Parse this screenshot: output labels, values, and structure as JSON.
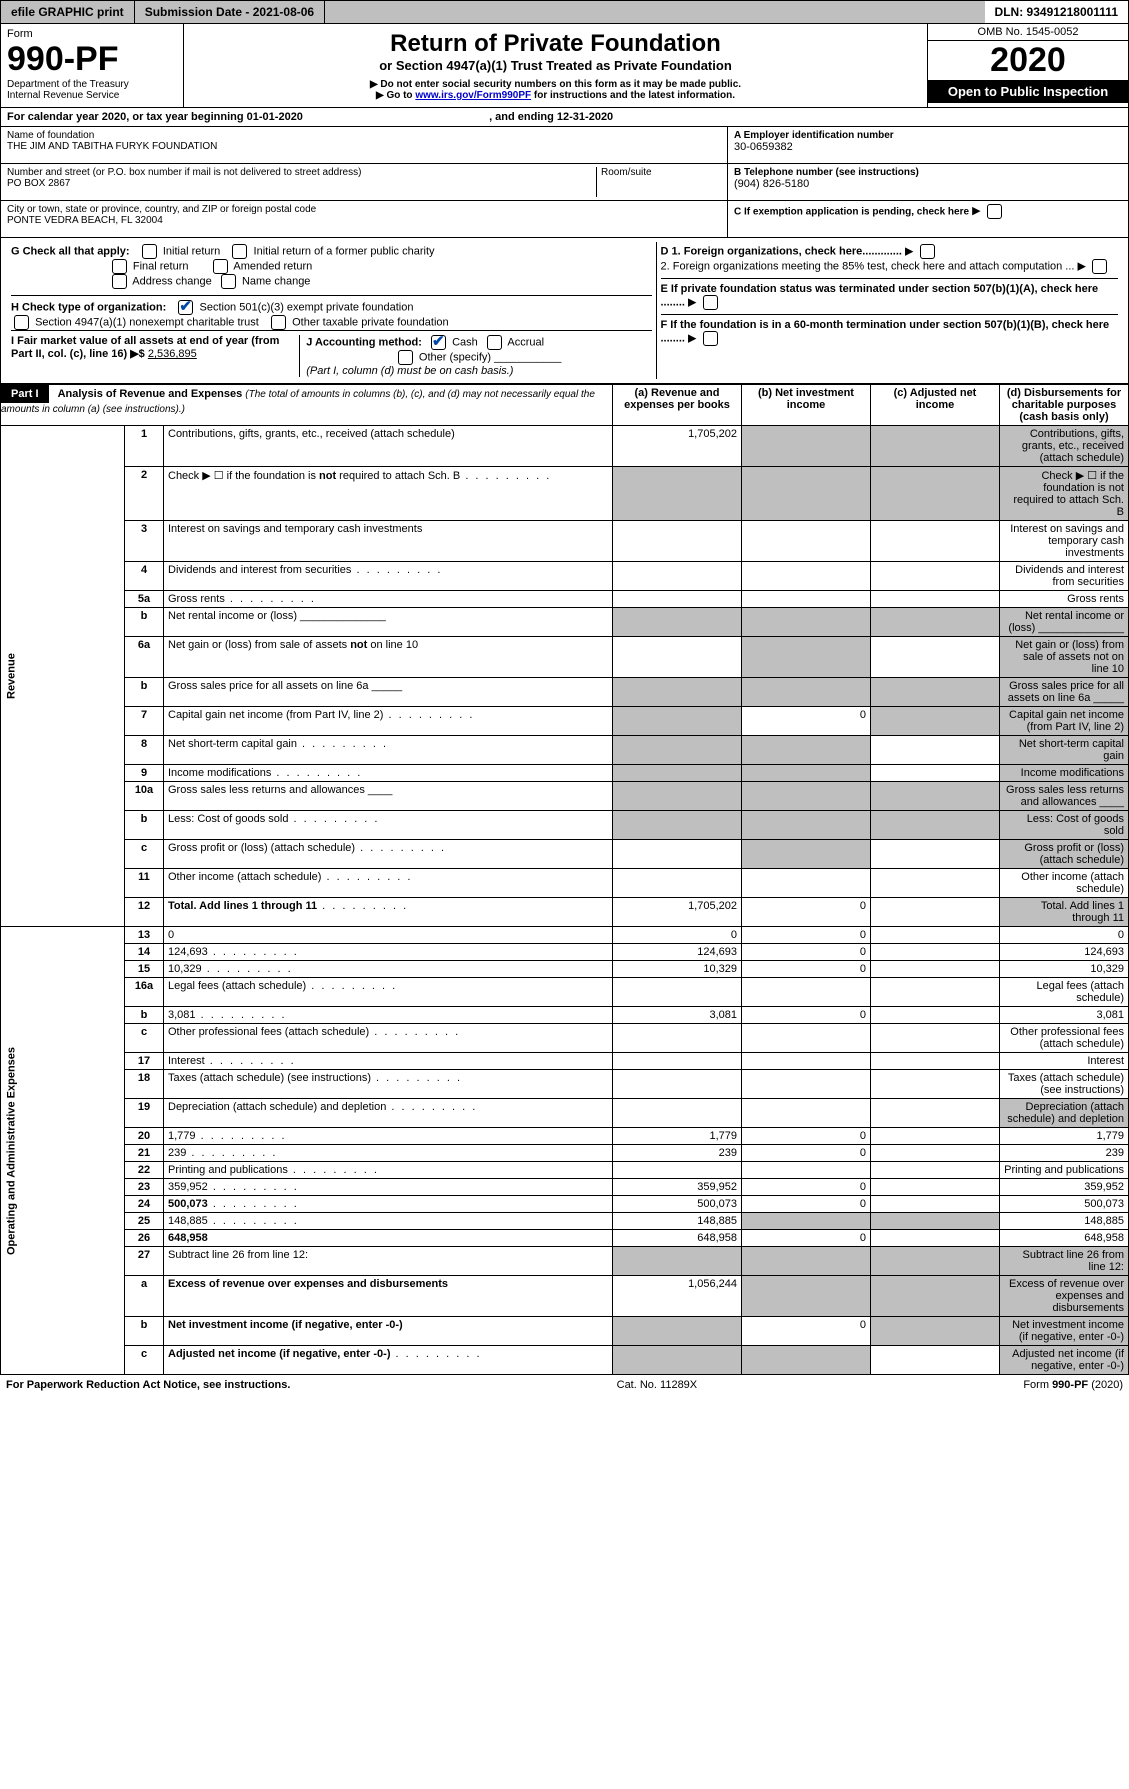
{
  "topbar": {
    "efile": "efile GRAPHIC print",
    "subdate_label": "Submission Date - ",
    "subdate": "2021-08-06",
    "dln_label": "DLN: ",
    "dln": "93491218001111"
  },
  "header": {
    "form_label": "Form",
    "form_no": "990-PF",
    "dept1": "Department of the Treasury",
    "dept2": "Internal Revenue Service",
    "title": "Return of Private Foundation",
    "subtitle": "or Section 4947(a)(1) Trust Treated as Private Foundation",
    "note1": "▶ Do not enter social security numbers on this form as it may be made public.",
    "note2_pre": "▶ Go to ",
    "note2_link": "www.irs.gov/Form990PF",
    "note2_post": " for instructions and the latest information.",
    "omb": "OMB No. 1545-0052",
    "year": "2020",
    "open": "Open to Public Inspection"
  },
  "calendar": {
    "text_pre": "For calendar year 2020, or tax year beginning ",
    "begin": "01-01-2020",
    "mid": " , and ending ",
    "end": "12-31-2020"
  },
  "info": {
    "name_label": "Name of foundation",
    "name": "THE JIM AND TABITHA FURYK FOUNDATION",
    "addr_label": "Number and street (or P.O. box number if mail is not delivered to street address)",
    "addr": "PO BOX 2867",
    "room_label": "Room/suite",
    "city_label": "City or town, state or province, country, and ZIP or foreign postal code",
    "city": "PONTE VEDRA BEACH, FL  32004",
    "a_label": "A Employer identification number",
    "a_val": "30-0659382",
    "b_label": "B Telephone number (see instructions)",
    "b_val": "(904) 826-5180",
    "c_label": "C If exemption application is pending, check here",
    "d1": "D 1. Foreign organizations, check here.............",
    "d2": "2. Foreign organizations meeting the 85% test, check here and attach computation ...",
    "e_label": "E  If private foundation status was terminated under section 507(b)(1)(A), check here ........",
    "f_label": "F  If the foundation is in a 60-month termination under section 507(b)(1)(B), check here ........"
  },
  "checks": {
    "g_label": "G Check all that apply:",
    "g_initial": "Initial return",
    "g_initial_former": "Initial return of a former public charity",
    "g_final": "Final return",
    "g_amended": "Amended return",
    "g_addr": "Address change",
    "g_name": "Name change",
    "h_label": "H Check type of organization:",
    "h_501c3": "Section 501(c)(3) exempt private foundation",
    "h_4947": "Section 4947(a)(1) nonexempt charitable trust",
    "h_other": "Other taxable private foundation",
    "i_label": "I Fair market value of all assets at end of year (from Part II, col. (c), line 16) ▶$ ",
    "i_val": "2,536,895",
    "j_label": "J Accounting method:",
    "j_cash": "Cash",
    "j_accrual": "Accrual",
    "j_other": "Other (specify)",
    "j_note": "(Part I, column (d) must be on cash basis.)"
  },
  "part1": {
    "label": "Part I",
    "title": "Analysis of Revenue and Expenses",
    "title_paren": " (The total of amounts in columns (b), (c), and (d) may not necessarily equal the amounts in column (a) (see instructions).)",
    "col_a": "(a)   Revenue and expenses per books",
    "col_b": "(b)  Net investment income",
    "col_c": "(c)  Adjusted net income",
    "col_d": "(d)  Disbursements for charitable purposes (cash basis only)",
    "side_rev": "Revenue",
    "side_exp": "Operating and Administrative Expenses"
  },
  "lines": [
    {
      "n": "1",
      "d": "Contributions, gifts, grants, etc., received (attach schedule)",
      "a": "1,705,202",
      "grey_b": true,
      "grey_c": true,
      "grey_d": true
    },
    {
      "n": "2",
      "d": "Check ▶ ☐ if the foundation is not required to attach Sch. B",
      "grey_a": true,
      "grey_b": true,
      "grey_c": true,
      "grey_d": true,
      "dots": true
    },
    {
      "n": "3",
      "d": "Interest on savings and temporary cash investments"
    },
    {
      "n": "4",
      "d": "Dividends and interest from securities",
      "dots": true
    },
    {
      "n": "5a",
      "d": "Gross rents",
      "dots": true
    },
    {
      "n": "b",
      "d": "Net rental income or (loss)  ______________",
      "grey_a": true,
      "grey_b": true,
      "grey_c": true,
      "grey_d": true
    },
    {
      "n": "6a",
      "d": "Net gain or (loss) from sale of assets not on line 10",
      "grey_b": true,
      "grey_d": true
    },
    {
      "n": "b",
      "d": "Gross sales price for all assets on line 6a  _____",
      "grey_a": true,
      "grey_b": true,
      "grey_c": true,
      "grey_d": true
    },
    {
      "n": "7",
      "d": "Capital gain net income (from Part IV, line 2)",
      "dots": true,
      "grey_a": true,
      "b": "0",
      "grey_c": true,
      "grey_d": true
    },
    {
      "n": "8",
      "d": "Net short-term capital gain",
      "dots": true,
      "grey_a": true,
      "grey_b": true,
      "grey_d": true
    },
    {
      "n": "9",
      "d": "Income modifications",
      "dots": true,
      "grey_a": true,
      "grey_b": true,
      "grey_d": true
    },
    {
      "n": "10a",
      "d": "Gross sales less returns and allowances   ____",
      "grey_a": true,
      "grey_b": true,
      "grey_c": true,
      "grey_d": true
    },
    {
      "n": "b",
      "d": "Less: Cost of goods sold",
      "dots": true,
      "grey_a": true,
      "grey_b": true,
      "grey_c": true,
      "grey_d": true
    },
    {
      "n": "c",
      "d": "Gross profit or (loss) (attach schedule)",
      "dots": true,
      "grey_b": true,
      "grey_d": true
    },
    {
      "n": "11",
      "d": "Other income (attach schedule)",
      "dots": true
    },
    {
      "n": "12",
      "d": "Total. Add lines 1 through 11",
      "bold": true,
      "dots": true,
      "a": "1,705,202",
      "b": "0",
      "grey_d": true
    },
    {
      "n": "13",
      "d": "0",
      "a": "0",
      "b": "0"
    },
    {
      "n": "14",
      "d": "124,693",
      "dots": true,
      "a": "124,693",
      "b": "0"
    },
    {
      "n": "15",
      "d": "10,329",
      "dots": true,
      "a": "10,329",
      "b": "0"
    },
    {
      "n": "16a",
      "d": "Legal fees (attach schedule)",
      "dots": true
    },
    {
      "n": "b",
      "d": "3,081",
      "dots": true,
      "a": "3,081",
      "b": "0"
    },
    {
      "n": "c",
      "d": "Other professional fees (attach schedule)",
      "dots": true
    },
    {
      "n": "17",
      "d": "Interest",
      "dots": true
    },
    {
      "n": "18",
      "d": "Taxes (attach schedule) (see instructions)",
      "dots": true
    },
    {
      "n": "19",
      "d": "Depreciation (attach schedule) and depletion",
      "dots": true,
      "grey_d": true
    },
    {
      "n": "20",
      "d": "1,779",
      "dots": true,
      "a": "1,779",
      "b": "0"
    },
    {
      "n": "21",
      "d": "239",
      "dots": true,
      "a": "239",
      "b": "0"
    },
    {
      "n": "22",
      "d": "Printing and publications",
      "dots": true
    },
    {
      "n": "23",
      "d": "359,952",
      "dots": true,
      "a": "359,952",
      "b": "0"
    },
    {
      "n": "24",
      "d": "500,073",
      "bold": true,
      "dots": true,
      "a": "500,073",
      "b": "0"
    },
    {
      "n": "25",
      "d": "148,885",
      "dots": true,
      "a": "148,885",
      "grey_b": true,
      "grey_c": true
    },
    {
      "n": "26",
      "d": "648,958",
      "bold": true,
      "a": "648,958",
      "b": "0"
    },
    {
      "n": "27",
      "d": "Subtract line 26 from line 12:",
      "grey_a": true,
      "grey_b": true,
      "grey_c": true,
      "grey_d": true
    },
    {
      "n": "a",
      "d": "Excess of revenue over expenses and disbursements",
      "bold": true,
      "a": "1,056,244",
      "grey_b": true,
      "grey_c": true,
      "grey_d": true
    },
    {
      "n": "b",
      "d": "Net investment income (if negative, enter -0-)",
      "bold": true,
      "grey_a": true,
      "b": "0",
      "grey_c": true,
      "grey_d": true
    },
    {
      "n": "c",
      "d": "Adjusted net income (if negative, enter -0-)",
      "bold": true,
      "dots": true,
      "grey_a": true,
      "grey_b": true,
      "grey_d": true
    }
  ],
  "footer": {
    "left": "For Paperwork Reduction Act Notice, see instructions.",
    "mid": "Cat. No. 11289X",
    "right": "Form 990-PF (2020)"
  }
}
